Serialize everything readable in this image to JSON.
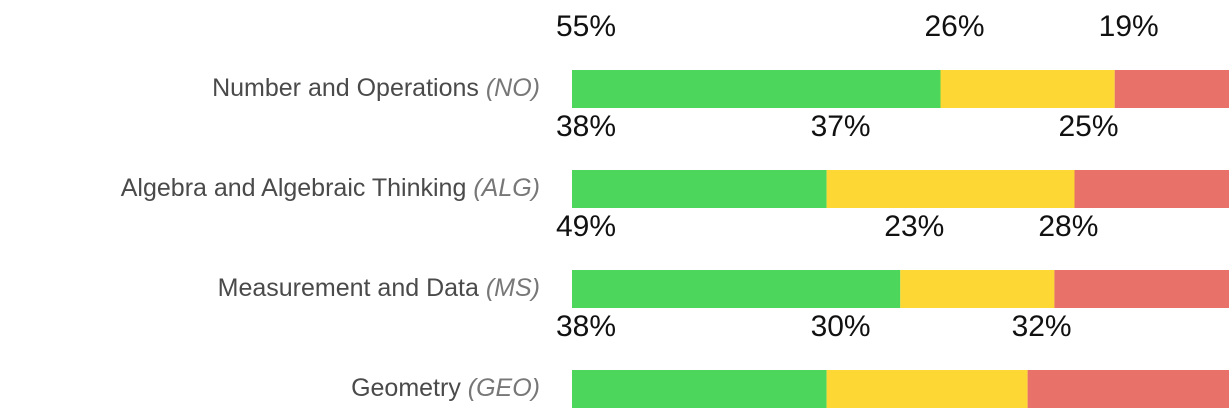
{
  "chart_data": {
    "type": "stacked-bar-horizontal",
    "categories": [
      "Number and Operations",
      "Algebra and Algebraic Thinking",
      "Measurement and Data",
      "Geometry"
    ],
    "category_codes": [
      "(NO)",
      "(ALG)",
      "(MS)",
      "(GEO)"
    ],
    "series": [
      {
        "color": "#4cd65c",
        "values": [
          55,
          38,
          49,
          38
        ],
        "value_labels": [
          "55%",
          "38%",
          "49%",
          "38%"
        ]
      },
      {
        "color": "#fdd835",
        "values": [
          26,
          37,
          23,
          30
        ],
        "value_labels": [
          "26%",
          "37%",
          "23%",
          "30%"
        ]
      },
      {
        "color": "#e8716a",
        "values": [
          19,
          25,
          28,
          32
        ],
        "value_labels": [
          "19%",
          "25%",
          "28%",
          "32%"
        ]
      }
    ],
    "xlim": [
      0,
      100
    ]
  }
}
